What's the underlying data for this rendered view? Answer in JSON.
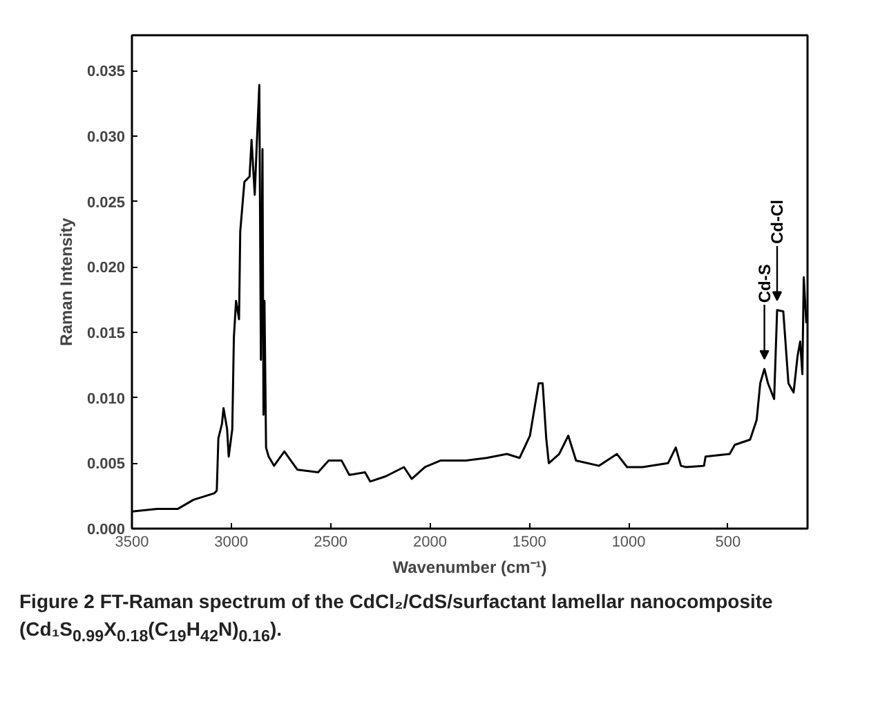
{
  "chart_data": {
    "type": "line",
    "xlabel": "Wavenumber (cm⁻¹)",
    "ylabel": "Raman Intensity",
    "xlim": [
      3500,
      100
    ],
    "ylim": [
      0,
      0.0377
    ],
    "xticks": [
      3500,
      3000,
      2500,
      2000,
      1500,
      1000,
      500
    ],
    "yticks": [
      {
        "value": 0,
        "label": "0.000"
      },
      {
        "value": 0.005,
        "label": "0.005"
      },
      {
        "value": 0.01,
        "label": "0.010"
      },
      {
        "value": 0.015,
        "label": "0.015"
      },
      {
        "value": 0.02,
        "label": "0.020"
      },
      {
        "value": 0.025,
        "label": "0.025"
      },
      {
        "value": 0.03,
        "label": "0.030"
      },
      {
        "value": 0.035,
        "label": "0.035"
      }
    ],
    "grid": false,
    "marker": "none",
    "line_style": "solid",
    "series": [
      {
        "color": "#000000",
        "x": [
          3500,
          3374,
          3270,
          3191,
          3086,
          3073,
          3065,
          3047,
          3039,
          3021,
          3013,
          2995,
          2987,
          2976,
          2961,
          2955,
          2934,
          2908,
          2898,
          2882,
          2872,
          2859,
          2851,
          2843,
          2838,
          2833,
          2825,
          2812,
          2785,
          2733,
          2667,
          2563,
          2510,
          2445,
          2406,
          2327,
          2301,
          2222,
          2131,
          2092,
          2025,
          1948,
          1819,
          1716,
          1613,
          1549,
          1497,
          1453,
          1433,
          1415,
          1402,
          1350,
          1304,
          1265,
          1149,
          1059,
          1008,
          930,
          802,
          763,
          737,
          711,
          621,
          613,
          492,
          466,
          389,
          356,
          338,
          317,
          299,
          268,
          253,
          222,
          196,
          170,
          150,
          137,
          126,
          119,
          106
        ],
        "values": [
          0.0013,
          0.0015,
          0.0015,
          0.0022,
          0.0027,
          0.0029,
          0.0069,
          0.008,
          0.0092,
          0.0076,
          0.0055,
          0.0076,
          0.0146,
          0.0174,
          0.016,
          0.0227,
          0.0265,
          0.0269,
          0.0297,
          0.0255,
          0.0293,
          0.0339,
          0.0129,
          0.029,
          0.0087,
          0.0174,
          0.0062,
          0.0055,
          0.0048,
          0.0059,
          0.0045,
          0.0043,
          0.0052,
          0.0052,
          0.0041,
          0.0043,
          0.0036,
          0.004,
          0.0047,
          0.0038,
          0.0047,
          0.0052,
          0.0052,
          0.0054,
          0.0057,
          0.0054,
          0.0071,
          0.0111,
          0.0111,
          0.0069,
          0.005,
          0.0057,
          0.0071,
          0.0052,
          0.0048,
          0.0057,
          0.0047,
          0.0047,
          0.005,
          0.0062,
          0.0048,
          0.0047,
          0.0048,
          0.0055,
          0.0057,
          0.0064,
          0.0068,
          0.0083,
          0.0111,
          0.0122,
          0.0111,
          0.0099,
          0.0167,
          0.0166,
          0.0111,
          0.0104,
          0.0132,
          0.0143,
          0.0118,
          0.0192,
          0.0157
        ]
      }
    ],
    "annotations": [
      {
        "text": "Cd-S",
        "x": 317,
        "y": 0.0122
      },
      {
        "text": "Cd-Cl",
        "x": 253,
        "y": 0.0167
      },
      "Figure 2 FT-Raman spectrum of the CdCl₂/CdS/surfactant lamellar nanocomposite (Cd₁S$_{0.99}$X$_{0.18}$(C$_{19}$H$_{42}$N)$_{0.16}$)."
    ]
  }
}
